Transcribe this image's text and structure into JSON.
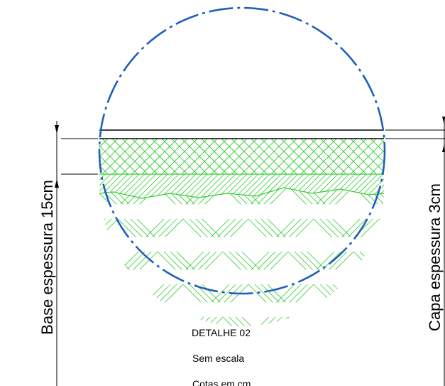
{
  "labels": {
    "base": "Base espessura 15cm",
    "capa": "Capa espessura 3cm"
  },
  "notes": {
    "title": "DETALHE 02",
    "scale": "Sem escala",
    "units": "Cotas em cm"
  },
  "colors": {
    "circle": "#1f5fb8",
    "hatch": "#33cc33",
    "lines": "#000000"
  }
}
